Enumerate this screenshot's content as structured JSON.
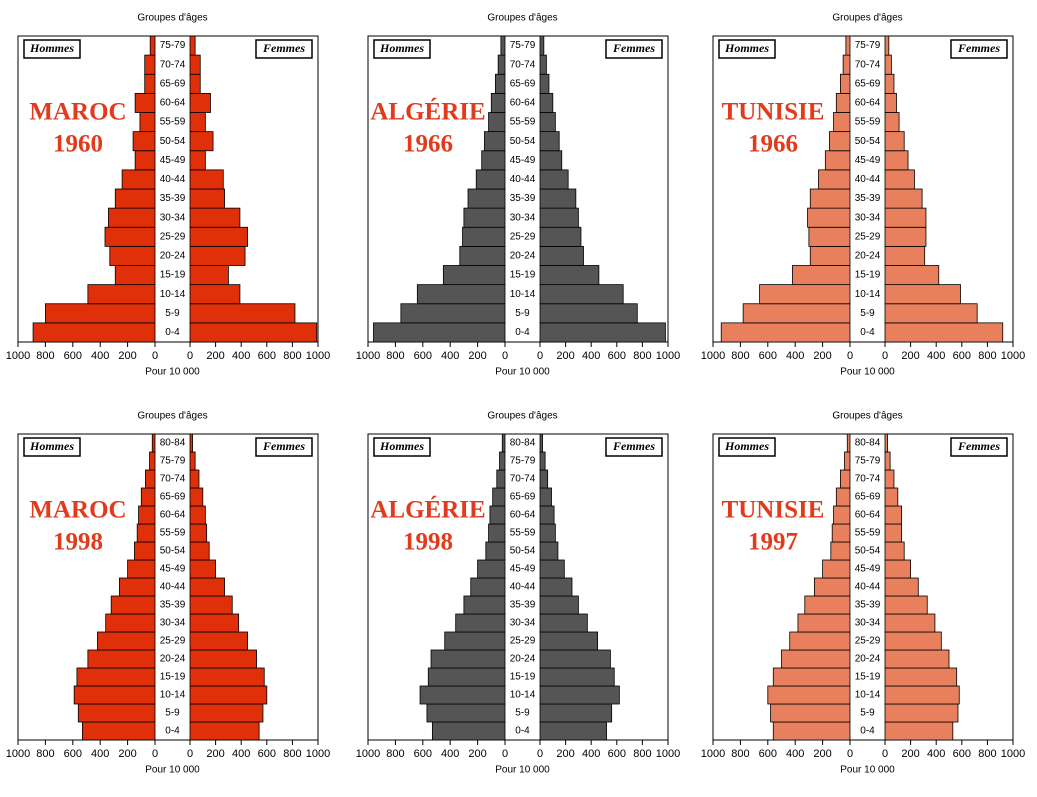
{
  "chart_data": [
    {
      "type": "pyramid",
      "title": "MAROC",
      "subtitle": "1960",
      "y_label": "Groupes d'âges",
      "x_label": "Pour 10 000",
      "categories": [
        "0-4",
        "5-9",
        "10-14",
        "15-19",
        "20-24",
        "25-29",
        "30-34",
        "35-39",
        "40-44",
        "45-49",
        "50-54",
        "55-59",
        "60-64",
        "65-69",
        "70-74",
        "75-79"
      ],
      "series": [
        {
          "name": "Hommes",
          "color": "#e0300a",
          "values": [
            890,
            800,
            490,
            290,
            330,
            365,
            340,
            290,
            240,
            145,
            160,
            110,
            145,
            75,
            75,
            35
          ]
        },
        {
          "name": "Femmes",
          "color": "#e0300a",
          "values": [
            990,
            820,
            390,
            300,
            430,
            450,
            390,
            270,
            260,
            120,
            180,
            120,
            160,
            80,
            80,
            40
          ]
        }
      ],
      "xlim": [
        0,
        1000
      ],
      "xticks": [
        0,
        200,
        400,
        600,
        800,
        1000
      ]
    },
    {
      "type": "pyramid",
      "title": "ALGÉRIE",
      "subtitle": "1966",
      "y_label": "Groupes d'âges",
      "x_label": "Pour 10 000",
      "categories": [
        "0-4",
        "5-9",
        "10-14",
        "15-19",
        "20-24",
        "25-29",
        "30-34",
        "35-39",
        "40-44",
        "45-49",
        "50-54",
        "55-59",
        "60-64",
        "65-69",
        "70-74",
        "75-79"
      ],
      "series": [
        {
          "name": "Hommes",
          "color": "#555555",
          "values": [
            960,
            760,
            640,
            450,
            330,
            310,
            300,
            270,
            210,
            170,
            150,
            120,
            100,
            70,
            50,
            30
          ]
        },
        {
          "name": "Femmes",
          "color": "#555555",
          "values": [
            980,
            760,
            650,
            460,
            340,
            320,
            300,
            280,
            220,
            170,
            150,
            120,
            100,
            70,
            50,
            30
          ]
        }
      ],
      "xlim": [
        0,
        1000
      ],
      "xticks": [
        0,
        200,
        400,
        600,
        800,
        1000
      ]
    },
    {
      "type": "pyramid",
      "title": "TUNISIE",
      "subtitle": "1966",
      "y_label": "Groupes d'âges",
      "x_label": "Pour 10 000",
      "categories": [
        "0-4",
        "5-9",
        "10-14",
        "15-19",
        "20-24",
        "25-29",
        "30-34",
        "35-39",
        "40-44",
        "45-49",
        "50-54",
        "55-59",
        "60-64",
        "65-69",
        "70-74",
        "75-79"
      ],
      "series": [
        {
          "name": "Hommes",
          "color": "#e8805e",
          "values": [
            940,
            780,
            660,
            420,
            290,
            300,
            310,
            290,
            230,
            180,
            150,
            120,
            100,
            70,
            50,
            30
          ]
        },
        {
          "name": "Femmes",
          "color": "#e8805e",
          "values": [
            920,
            720,
            590,
            420,
            310,
            320,
            320,
            290,
            230,
            180,
            150,
            110,
            90,
            70,
            50,
            30
          ]
        }
      ],
      "xlim": [
        0,
        1000
      ],
      "xticks": [
        0,
        200,
        400,
        600,
        800,
        1000
      ]
    },
    {
      "type": "pyramid",
      "title": "MAROC",
      "subtitle": "1998",
      "y_label": "Groupes d'âges",
      "x_label": "Pour 10 000",
      "categories": [
        "0-4",
        "5-9",
        "10-14",
        "15-19",
        "20-24",
        "25-29",
        "30-34",
        "35-39",
        "40-44",
        "45-49",
        "50-54",
        "55-59",
        "60-64",
        "65-69",
        "70-74",
        "75-79",
        "80-84"
      ],
      "series": [
        {
          "name": "Hommes",
          "color": "#e0300a",
          "values": [
            530,
            560,
            590,
            570,
            490,
            420,
            360,
            320,
            260,
            200,
            150,
            130,
            120,
            100,
            70,
            40,
            20
          ]
        },
        {
          "name": "Femmes",
          "color": "#e0300a",
          "values": [
            540,
            570,
            600,
            580,
            520,
            450,
            380,
            330,
            270,
            200,
            150,
            130,
            120,
            100,
            70,
            40,
            20
          ]
        }
      ],
      "xlim": [
        0,
        1000
      ],
      "xticks": [
        0,
        200,
        400,
        600,
        800,
        1000
      ]
    },
    {
      "type": "pyramid",
      "title": "ALGÉRIE",
      "subtitle": "1998",
      "y_label": "Groupes d'âges",
      "x_label": "Pour 10 000",
      "categories": [
        "0-4",
        "5-9",
        "10-14",
        "15-19",
        "20-24",
        "25-29",
        "30-34",
        "35-39",
        "40-44",
        "45-49",
        "50-54",
        "55-59",
        "60-64",
        "65-69",
        "70-74",
        "75-79",
        "80-84"
      ],
      "series": [
        {
          "name": "Hommes",
          "color": "#555555",
          "values": [
            530,
            570,
            620,
            560,
            540,
            440,
            360,
            300,
            250,
            200,
            140,
            120,
            110,
            90,
            60,
            40,
            20
          ]
        },
        {
          "name": "Femmes",
          "color": "#555555",
          "values": [
            520,
            560,
            620,
            580,
            550,
            450,
            370,
            300,
            250,
            190,
            140,
            120,
            110,
            90,
            60,
            40,
            20
          ]
        }
      ],
      "xlim": [
        0,
        1000
      ],
      "xticks": [
        0,
        200,
        400,
        600,
        800,
        1000
      ]
    },
    {
      "type": "pyramid",
      "title": "TUNISIE",
      "subtitle": "1997",
      "y_label": "Groupes d'âges",
      "x_label": "Pour 10 000",
      "categories": [
        "0-4",
        "5-9",
        "10-14",
        "15-19",
        "20-24",
        "25-29",
        "30-34",
        "35-39",
        "40-44",
        "45-49",
        "50-54",
        "55-59",
        "60-64",
        "65-69",
        "70-74",
        "75-79",
        "80-84"
      ],
      "series": [
        {
          "name": "Hommes",
          "color": "#e8805e",
          "values": [
            560,
            580,
            600,
            560,
            500,
            440,
            380,
            330,
            260,
            200,
            140,
            130,
            120,
            100,
            70,
            40,
            20
          ]
        },
        {
          "name": "Femmes",
          "color": "#e8805e",
          "values": [
            530,
            570,
            580,
            560,
            500,
            440,
            390,
            330,
            260,
            200,
            150,
            130,
            130,
            100,
            70,
            40,
            20
          ]
        }
      ],
      "xlim": [
        0,
        1000
      ],
      "xticks": [
        0,
        200,
        400,
        600,
        800,
        1000
      ]
    }
  ]
}
